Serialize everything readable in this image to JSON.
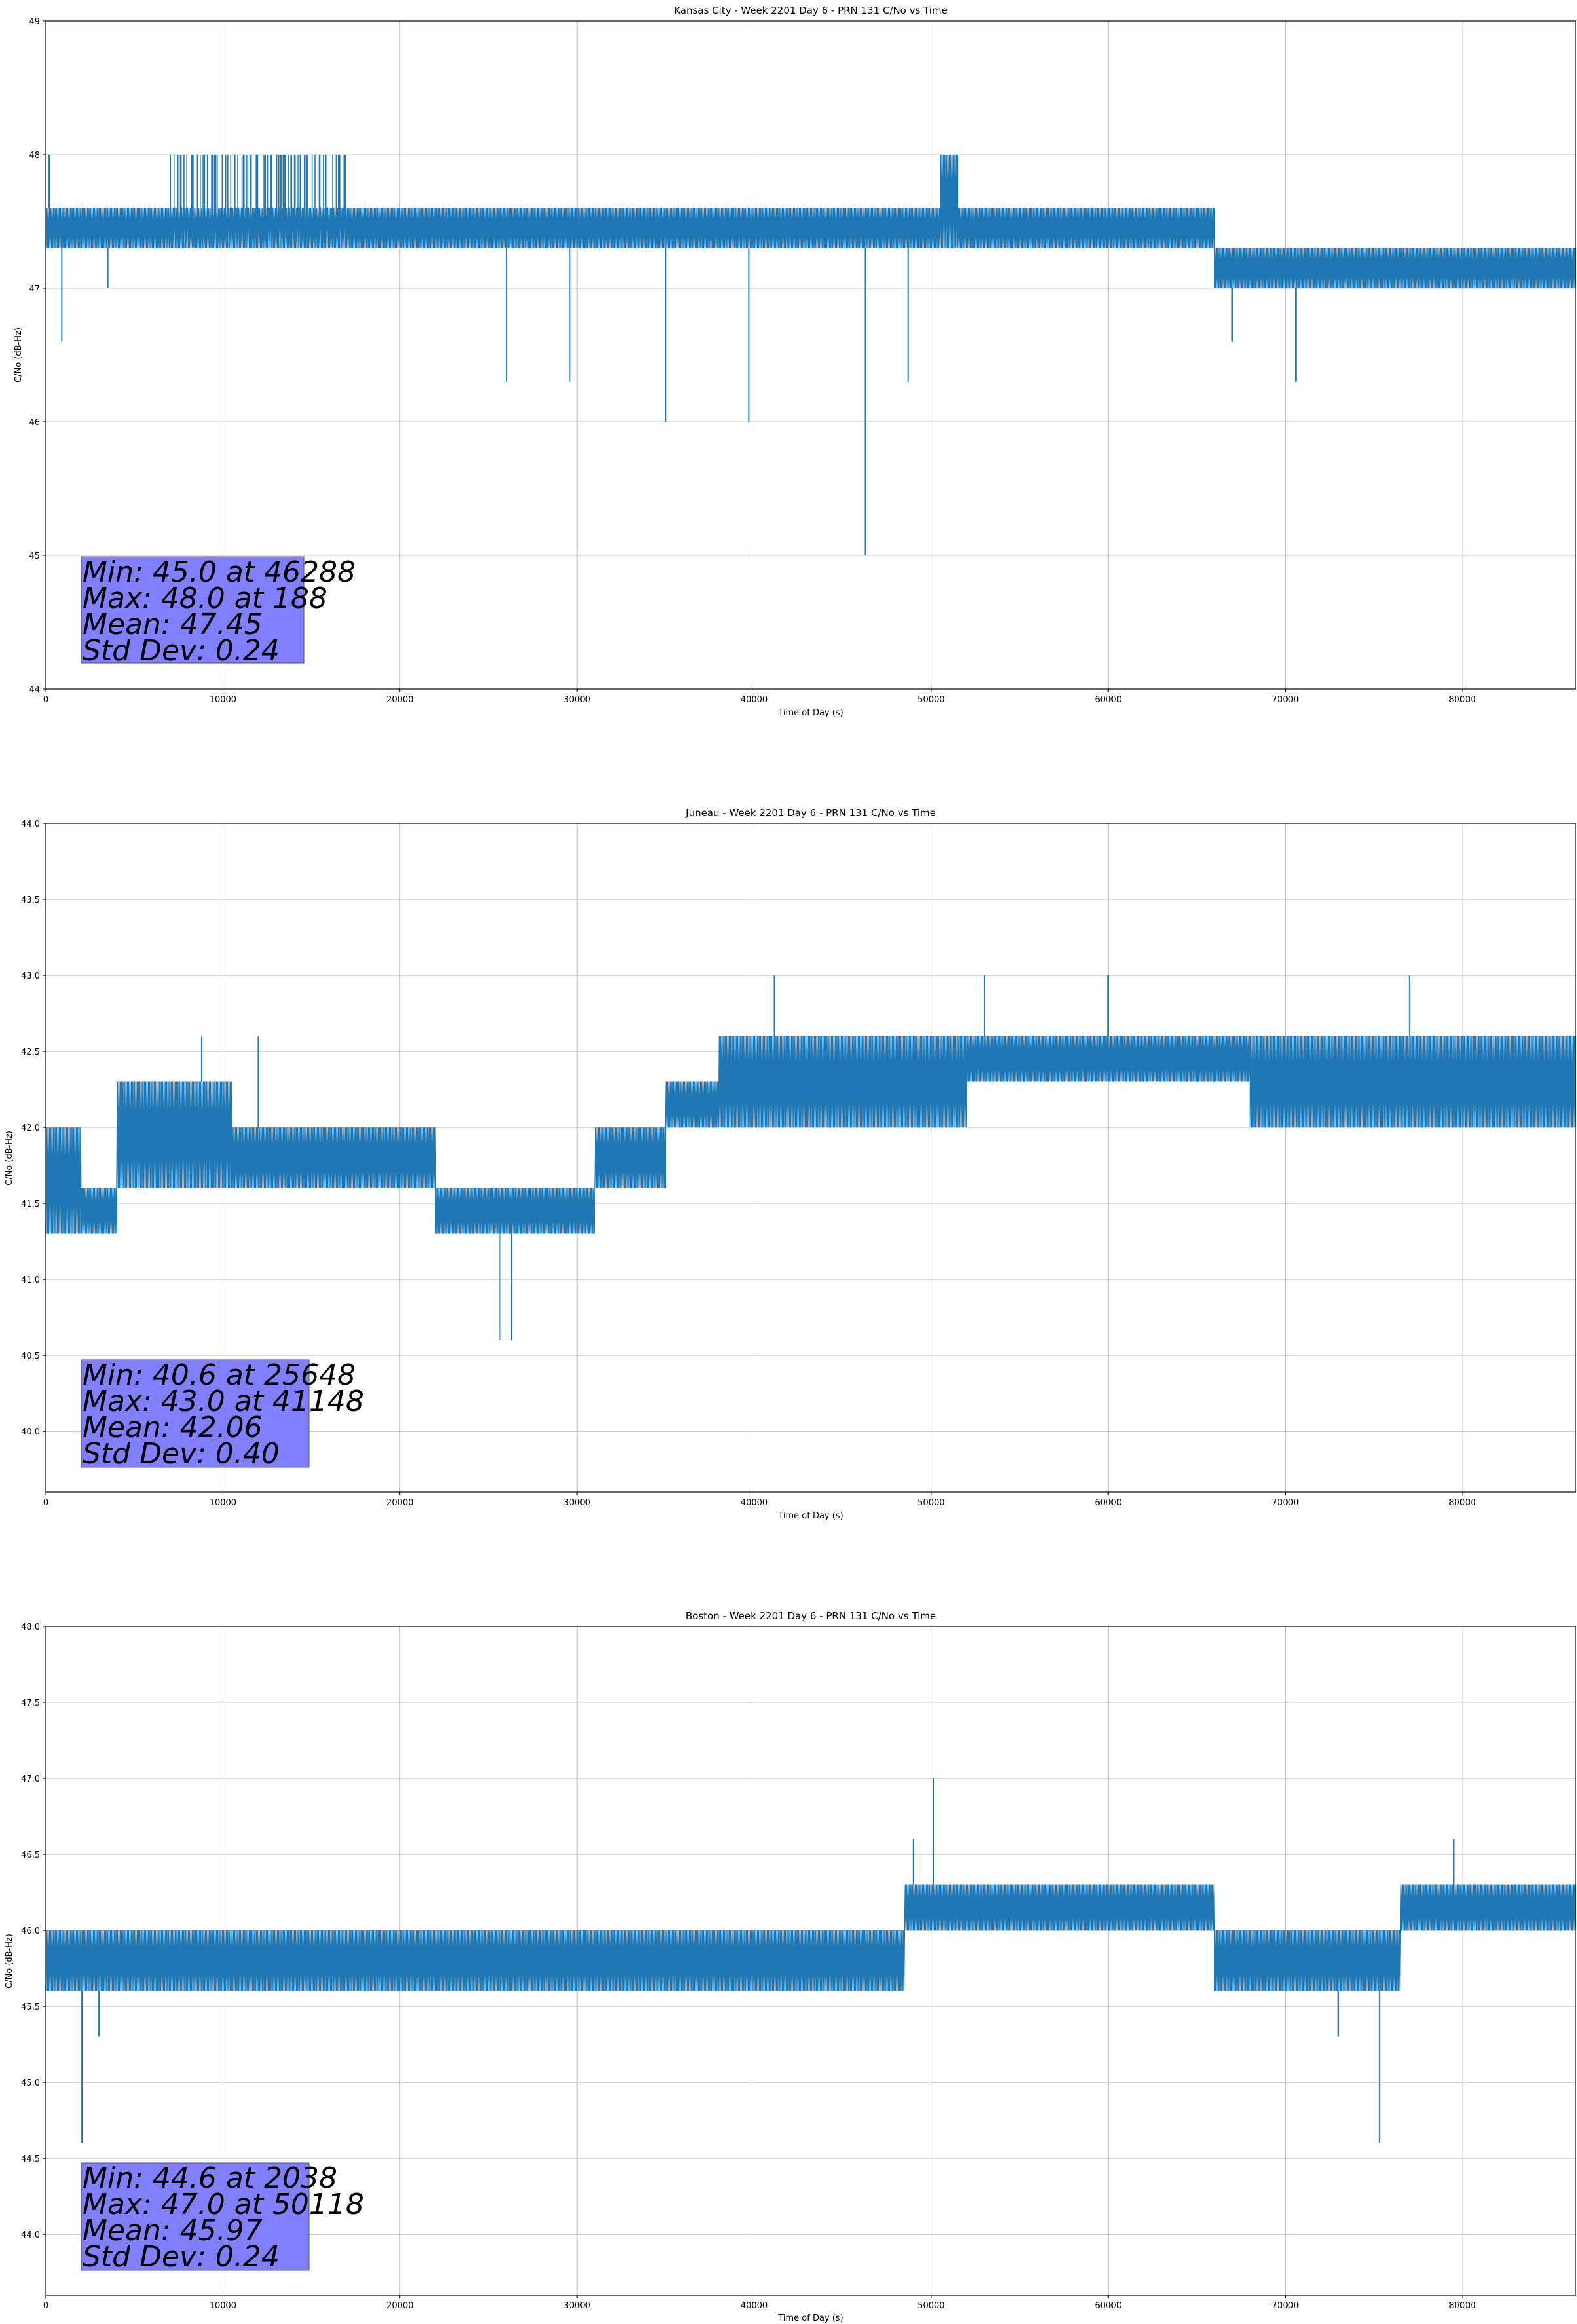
{
  "chart_data": [
    {
      "type": "line",
      "title": "Kansas City - Week 2201 Day 6 - PRN 131 C/No vs Time",
      "xlabel": "Time of Day (s)",
      "ylabel": "C/No (dB-Hz)",
      "xlim": [
        0,
        86400
      ],
      "ylim": [
        44,
        49
      ],
      "xticks": [
        0,
        10000,
        20000,
        30000,
        40000,
        50000,
        60000,
        70000,
        80000
      ],
      "yticks": [
        44,
        45,
        46,
        47,
        48,
        49
      ],
      "ytick_labels": [
        "44",
        "45",
        "46",
        "47",
        "48",
        "49"
      ],
      "grid": true,
      "color": "#1f77b4",
      "series": [
        {
          "segments": [
            {
              "x0": 0,
              "x1": 7000,
              "ymin": 47.3,
              "ymax": 47.6,
              "dense": true
            },
            {
              "x0": 7000,
              "x1": 17000,
              "ymin": 47.3,
              "ymax": 47.6,
              "dense": true,
              "spikes_up": 48.0
            },
            {
              "x0": 17000,
              "x1": 50500,
              "ymin": 47.3,
              "ymax": 47.6,
              "dense": true
            },
            {
              "x0": 50500,
              "x1": 51500,
              "ymin": 47.3,
              "ymax": 48.0,
              "dense": true
            },
            {
              "x0": 51500,
              "x1": 66000,
              "ymin": 47.3,
              "ymax": 47.6,
              "dense": true
            },
            {
              "x0": 66000,
              "x1": 86400,
              "ymin": 47.0,
              "ymax": 47.3,
              "dense": true
            }
          ],
          "spikes": [
            [
              188,
              48.0
            ],
            [
              900,
              46.6
            ],
            [
              3500,
              47.0
            ],
            [
              26000,
              46.3
            ],
            [
              29600,
              46.3
            ],
            [
              35000,
              46.0
            ],
            [
              39700,
              46.0
            ],
            [
              46288,
              45.0
            ],
            [
              48700,
              46.3
            ],
            [
              67000,
              46.6
            ],
            [
              70600,
              46.3
            ]
          ]
        }
      ],
      "annotation": {
        "lines": [
          "Min: 45.0 at 46288",
          "Max: 48.0 at 188",
          "Mean: 47.45",
          "Std Dev: 0.24"
        ]
      }
    },
    {
      "type": "line",
      "title": "Juneau - Week 2201 Day 6 - PRN 131 C/No vs Time",
      "xlabel": "Time of Day (s)",
      "ylabel": "C/No (dB-Hz)",
      "xlim": [
        0,
        86400
      ],
      "ylim": [
        39.6,
        44.0
      ],
      "xticks": [
        0,
        10000,
        20000,
        30000,
        40000,
        50000,
        60000,
        70000,
        80000
      ],
      "yticks": [
        40.0,
        40.5,
        41.0,
        41.5,
        42.0,
        42.5,
        43.0,
        43.5,
        44.0
      ],
      "ytick_labels": [
        "40.0",
        "40.5",
        "41.0",
        "41.5",
        "42.0",
        "42.5",
        "43.0",
        "43.5",
        "44.0"
      ],
      "grid": true,
      "color": "#1f77b4",
      "series": [
        {
          "segments": [
            {
              "x0": 0,
              "x1": 2000,
              "ymin": 41.3,
              "ymax": 42.0,
              "dense": true
            },
            {
              "x0": 2000,
              "x1": 4000,
              "ymin": 41.3,
              "ymax": 41.6,
              "dense": true
            },
            {
              "x0": 4000,
              "x1": 10500,
              "ymin": 41.6,
              "ymax": 42.3,
              "dense": true
            },
            {
              "x0": 10500,
              "x1": 22000,
              "ymin": 41.6,
              "ymax": 42.0,
              "dense": true
            },
            {
              "x0": 22000,
              "x1": 31000,
              "ymin": 41.3,
              "ymax": 41.6,
              "dense": true
            },
            {
              "x0": 31000,
              "x1": 35000,
              "ymin": 41.6,
              "ymax": 42.0,
              "dense": true
            },
            {
              "x0": 35000,
              "x1": 38000,
              "ymin": 42.0,
              "ymax": 42.3,
              "dense": true
            },
            {
              "x0": 38000,
              "x1": 52000,
              "ymin": 42.0,
              "ymax": 42.6,
              "dense": true
            },
            {
              "x0": 52000,
              "x1": 68000,
              "ymin": 42.3,
              "ymax": 42.6,
              "dense": true
            },
            {
              "x0": 68000,
              "x1": 86400,
              "ymin": 42.0,
              "ymax": 42.6,
              "dense": true
            }
          ],
          "spikes": [
            [
              8800,
              42.6
            ],
            [
              12000,
              42.6
            ],
            [
              25648,
              40.6
            ],
            [
              26300,
              40.6
            ],
            [
              41148,
              43.0
            ],
            [
              53000,
              43.0
            ],
            [
              60000,
              43.0
            ],
            [
              77000,
              43.0
            ]
          ]
        }
      ],
      "annotation": {
        "lines": [
          "Min: 40.6 at 25648",
          "Max: 43.0 at 41148",
          "Mean: 42.06",
          "Std Dev: 0.40"
        ]
      }
    },
    {
      "type": "line",
      "title": "Boston - Week 2201 Day 6 - PRN 131 C/No vs Time",
      "xlabel": "Time of Day (s)",
      "ylabel": "C/No (dB-Hz)",
      "xlim": [
        0,
        86400
      ],
      "ylim": [
        43.6,
        48.0
      ],
      "xticks": [
        0,
        10000,
        20000,
        30000,
        40000,
        50000,
        60000,
        70000,
        80000
      ],
      "yticks": [
        44.0,
        44.5,
        45.0,
        45.5,
        46.0,
        46.5,
        47.0,
        47.5,
        48.0
      ],
      "ytick_labels": [
        "44.0",
        "44.5",
        "45.0",
        "45.5",
        "46.0",
        "46.5",
        "47.0",
        "47.5",
        "48.0"
      ],
      "grid": true,
      "color": "#1f77b4",
      "series": [
        {
          "segments": [
            {
              "x0": 0,
              "x1": 10000,
              "ymin": 45.6,
              "ymax": 46.0,
              "dense": true
            },
            {
              "x0": 10000,
              "x1": 48500,
              "ymin": 45.6,
              "ymax": 46.0,
              "dense": true
            },
            {
              "x0": 48500,
              "x1": 66000,
              "ymin": 46.0,
              "ymax": 46.3,
              "dense": true
            },
            {
              "x0": 66000,
              "x1": 76500,
              "ymin": 45.6,
              "ymax": 46.0,
              "dense": true
            },
            {
              "x0": 76500,
              "x1": 86400,
              "ymin": 46.0,
              "ymax": 46.3,
              "dense": true
            }
          ],
          "spikes": [
            [
              2038,
              44.6
            ],
            [
              3000,
              45.3
            ],
            [
              50118,
              47.0
            ],
            [
              49000,
              46.6
            ],
            [
              73000,
              45.3
            ],
            [
              75300,
              44.6
            ],
            [
              79500,
              46.6
            ]
          ]
        }
      ],
      "annotation": {
        "lines": [
          "Min: 44.6 at 2038",
          "Max: 47.0 at 50118",
          "Mean: 45.97",
          "Std Dev: 0.24"
        ]
      }
    }
  ]
}
